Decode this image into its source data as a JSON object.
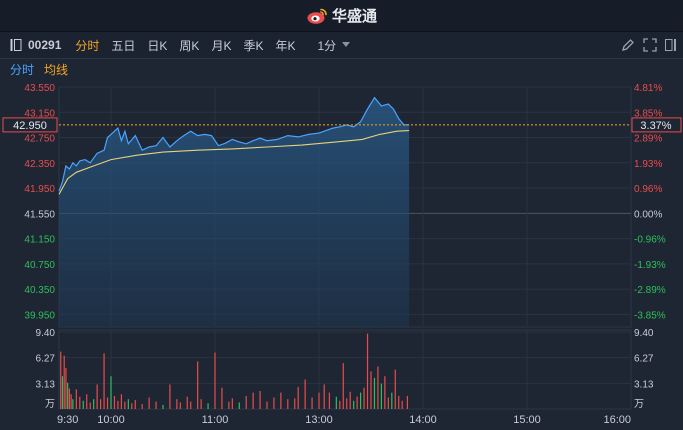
{
  "app": {
    "brand": "华盛通"
  },
  "toolbar": {
    "code": "00291",
    "tabs": [
      "分时",
      "五日",
      "日K",
      "周K",
      "月K",
      "季K",
      "年K"
    ],
    "active_tab": "分时",
    "interval": "1分"
  },
  "subbar": {
    "tab_fenshi": "分时",
    "tab_avg": "均线"
  },
  "colors": {
    "up": "#e84c4c",
    "down": "#2fbf5b",
    "price": "#4aa3ff",
    "avg": "#e8d27a",
    "accent": "#f5a623",
    "tag": "#f5a623"
  },
  "chart_data": {
    "type": "line",
    "prev_close": 41.55,
    "current_price_label": "42.950",
    "current_pct_label": "3.37%",
    "price_ticks": [
      "43.550",
      "43.150",
      "42.750",
      "42.350",
      "41.950",
      "41.550",
      "41.150",
      "40.750",
      "40.350",
      "39.950"
    ],
    "price_tick_values": [
      43.55,
      43.15,
      42.75,
      42.35,
      41.95,
      41.55,
      41.15,
      40.75,
      40.35,
      39.95
    ],
    "pct_ticks": [
      "4.81%",
      "3.85%",
      "2.89%",
      "1.93%",
      "0.96%",
      "0.00%",
      "-0.96%",
      "-1.93%",
      "-2.89%",
      "-3.85%"
    ],
    "ylim": [
      39.75,
      43.55
    ],
    "x_ticks": [
      "9:30",
      "10:00",
      "11:00",
      "13:00",
      "14:00",
      "15:00",
      "16:00"
    ],
    "x_tick_minutes": [
      0,
      30,
      90,
      150,
      210,
      270,
      330
    ],
    "session_minutes": 330,
    "volume_ticks": [
      "9.40",
      "6.27",
      "3.13",
      "万"
    ],
    "volume_tick_values": [
      9.4,
      6.27,
      3.13
    ],
    "volume_unit": "万",
    "volume_max": 9.4,
    "price_series": [
      [
        0,
        41.9
      ],
      [
        2,
        42.05
      ],
      [
        4,
        42.3
      ],
      [
        6,
        42.25
      ],
      [
        8,
        42.35
      ],
      [
        10,
        42.3
      ],
      [
        12,
        42.38
      ],
      [
        15,
        42.4
      ],
      [
        18,
        42.35
      ],
      [
        22,
        42.5
      ],
      [
        26,
        42.55
      ],
      [
        28,
        42.75
      ],
      [
        30,
        42.8
      ],
      [
        32,
        42.85
      ],
      [
        34,
        42.9
      ],
      [
        36,
        42.7
      ],
      [
        38,
        42.85
      ],
      [
        40,
        42.65
      ],
      [
        44,
        42.78
      ],
      [
        48,
        42.55
      ],
      [
        52,
        42.6
      ],
      [
        56,
        42.62
      ],
      [
        60,
        42.75
      ],
      [
        64,
        42.6
      ],
      [
        68,
        42.7
      ],
      [
        72,
        42.78
      ],
      [
        76,
        42.85
      ],
      [
        80,
        42.78
      ],
      [
        84,
        42.8
      ],
      [
        88,
        42.78
      ],
      [
        92,
        42.62
      ],
      [
        96,
        42.66
      ],
      [
        100,
        42.72
      ],
      [
        104,
        42.68
      ],
      [
        108,
        42.65
      ],
      [
        112,
        42.7
      ],
      [
        116,
        42.74
      ],
      [
        120,
        42.7
      ],
      [
        126,
        42.72
      ],
      [
        132,
        42.78
      ],
      [
        138,
        42.76
      ],
      [
        144,
        42.8
      ],
      [
        150,
        42.82
      ],
      [
        154,
        42.86
      ],
      [
        158,
        42.9
      ],
      [
        162,
        42.92
      ],
      [
        166,
        42.95
      ],
      [
        170,
        42.92
      ],
      [
        174,
        43.0
      ],
      [
        178,
        43.2
      ],
      [
        182,
        43.38
      ],
      [
        186,
        43.25
      ],
      [
        190,
        43.28
      ],
      [
        193,
        43.2
      ],
      [
        196,
        43.05
      ],
      [
        199,
        42.95
      ],
      [
        202,
        42.95
      ]
    ],
    "avg_series": [
      [
        0,
        41.85
      ],
      [
        5,
        42.1
      ],
      [
        10,
        42.2
      ],
      [
        20,
        42.3
      ],
      [
        30,
        42.4
      ],
      [
        45,
        42.47
      ],
      [
        60,
        42.52
      ],
      [
        80,
        42.55
      ],
      [
        100,
        42.57
      ],
      [
        120,
        42.6
      ],
      [
        140,
        42.63
      ],
      [
        160,
        42.68
      ],
      [
        175,
        42.72
      ],
      [
        185,
        42.8
      ],
      [
        195,
        42.85
      ],
      [
        202,
        42.86
      ]
    ],
    "volume_series": [
      [
        1,
        7.0,
        "up"
      ],
      [
        2,
        4.0,
        "down"
      ],
      [
        3,
        6.5,
        "up"
      ],
      [
        4,
        5.0,
        "up"
      ],
      [
        5,
        3.2,
        "down"
      ],
      [
        6,
        2.5,
        "up"
      ],
      [
        7,
        1.8,
        "up"
      ],
      [
        8,
        1.2,
        "down"
      ],
      [
        10,
        2.4,
        "up"
      ],
      [
        12,
        1.5,
        "up"
      ],
      [
        14,
        1.0,
        "down"
      ],
      [
        16,
        1.8,
        "up"
      ],
      [
        18,
        0.8,
        "up"
      ],
      [
        20,
        1.2,
        "down"
      ],
      [
        22,
        3.0,
        "up"
      ],
      [
        24,
        1.2,
        "up"
      ],
      [
        26,
        6.8,
        "up"
      ],
      [
        28,
        1.4,
        "up"
      ],
      [
        30,
        4.0,
        "down"
      ],
      [
        32,
        1.6,
        "up"
      ],
      [
        34,
        1.0,
        "up"
      ],
      [
        36,
        1.8,
        "up"
      ],
      [
        38,
        0.9,
        "up"
      ],
      [
        40,
        1.2,
        "down"
      ],
      [
        42,
        0.7,
        "up"
      ],
      [
        44,
        1.1,
        "up"
      ],
      [
        48,
        0.6,
        "up"
      ],
      [
        52,
        1.4,
        "up"
      ],
      [
        56,
        0.9,
        "up"
      ],
      [
        60,
        0.5,
        "down"
      ],
      [
        64,
        3.0,
        "up"
      ],
      [
        68,
        1.2,
        "up"
      ],
      [
        70,
        0.8,
        "up"
      ],
      [
        74,
        1.5,
        "up"
      ],
      [
        76,
        0.9,
        "up"
      ],
      [
        80,
        5.8,
        "up"
      ],
      [
        82,
        1.2,
        "up"
      ],
      [
        86,
        0.7,
        "down"
      ],
      [
        90,
        6.9,
        "up"
      ],
      [
        94,
        2.6,
        "up"
      ],
      [
        98,
        0.9,
        "up"
      ],
      [
        100,
        1.3,
        "up"
      ],
      [
        104,
        0.8,
        "down"
      ],
      [
        108,
        1.6,
        "up"
      ],
      [
        112,
        2.0,
        "up"
      ],
      [
        116,
        2.2,
        "up"
      ],
      [
        120,
        0.9,
        "up"
      ],
      [
        124,
        1.4,
        "up"
      ],
      [
        128,
        2.0,
        "up"
      ],
      [
        132,
        1.2,
        "up"
      ],
      [
        136,
        1.3,
        "up"
      ],
      [
        138,
        2.7,
        "up"
      ],
      [
        142,
        3.6,
        "up"
      ],
      [
        146,
        1.4,
        "up"
      ],
      [
        150,
        2.0,
        "up"
      ],
      [
        153,
        3.0,
        "up"
      ],
      [
        156,
        2.0,
        "up"
      ],
      [
        160,
        1.5,
        "down"
      ],
      [
        162,
        1.0,
        "up"
      ],
      [
        164,
        5.6,
        "up"
      ],
      [
        166,
        1.3,
        "up"
      ],
      [
        168,
        2.1,
        "up"
      ],
      [
        170,
        1.0,
        "down"
      ],
      [
        172,
        1.5,
        "up"
      ],
      [
        174,
        2.0,
        "down"
      ],
      [
        176,
        2.6,
        "up"
      ],
      [
        178,
        9.2,
        "up"
      ],
      [
        180,
        4.6,
        "up"
      ],
      [
        182,
        3.8,
        "down"
      ],
      [
        184,
        5.2,
        "up"
      ],
      [
        186,
        3.1,
        "down"
      ],
      [
        188,
        4.0,
        "up"
      ],
      [
        190,
        1.4,
        "up"
      ],
      [
        192,
        2.0,
        "down"
      ],
      [
        194,
        4.8,
        "up"
      ],
      [
        196,
        1.6,
        "up"
      ],
      [
        198,
        1.0,
        "up"
      ],
      [
        201,
        1.6,
        "up"
      ]
    ]
  }
}
